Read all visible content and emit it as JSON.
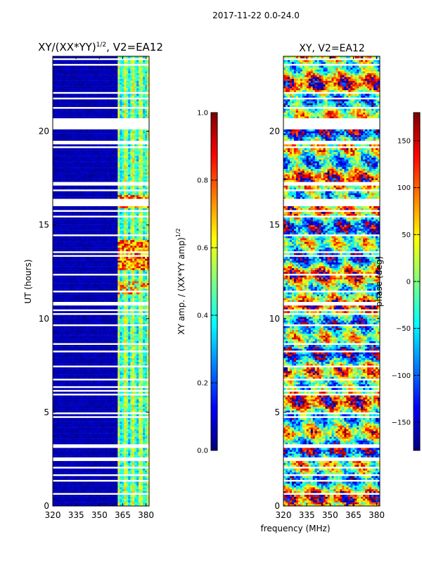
{
  "suptitle": "2017-11-22 0.0-24.0",
  "colors": {
    "jet": [
      "#00007f",
      "#0000ff",
      "#007fff",
      "#00ffff",
      "#7fff7f",
      "#ffff00",
      "#ff7f00",
      "#ff0000",
      "#7f0000"
    ],
    "gap": "#ffffff",
    "axis": "#000000"
  },
  "chart_data": [
    {
      "type": "heatmap",
      "panel": "amplitude",
      "title_main": "XY/(XX*YY)",
      "title_exp": "1/2",
      "title_tail": ", V2=EA12",
      "xlabel": "",
      "ylabel": "UT (hours)",
      "xlim": [
        320,
        382
      ],
      "ylim": [
        0,
        24
      ],
      "xticks": [
        320,
        335,
        350,
        365,
        380
      ],
      "yticks": [
        0,
        5,
        10,
        15,
        20
      ],
      "x_band_start_mhz": 363,
      "colorbar": {
        "label_main": "XY amp. / (XX*YY amp)",
        "label_exp": "1/2",
        "range": [
          0.0,
          1.0
        ],
        "ticks": [
          "0.0",
          "0.2",
          "0.4",
          "0.6",
          "0.8",
          "1.0"
        ],
        "tick_values": [
          0.0,
          0.2,
          0.4,
          0.6,
          0.8,
          1.0
        ],
        "colormap": "jet"
      }
    },
    {
      "type": "heatmap",
      "panel": "phase",
      "title_main": "XY, V2=EA12",
      "xlabel": "frequency (MHz)",
      "ylabel": "",
      "xlim": [
        320,
        382
      ],
      "ylim": [
        0,
        24
      ],
      "xticks": [
        320,
        335,
        350,
        365,
        380
      ],
      "yticks": [
        0,
        5,
        10,
        15,
        20
      ],
      "colorbar": {
        "label_main": "phase (deg)",
        "range": [
          -180,
          180
        ],
        "ticks": [
          "−150",
          "−100",
          "−50",
          "0",
          "50",
          "100",
          "150"
        ],
        "tick_values": [
          -150,
          -100,
          -50,
          0,
          50,
          100,
          150
        ],
        "colormap": "jet"
      }
    }
  ]
}
